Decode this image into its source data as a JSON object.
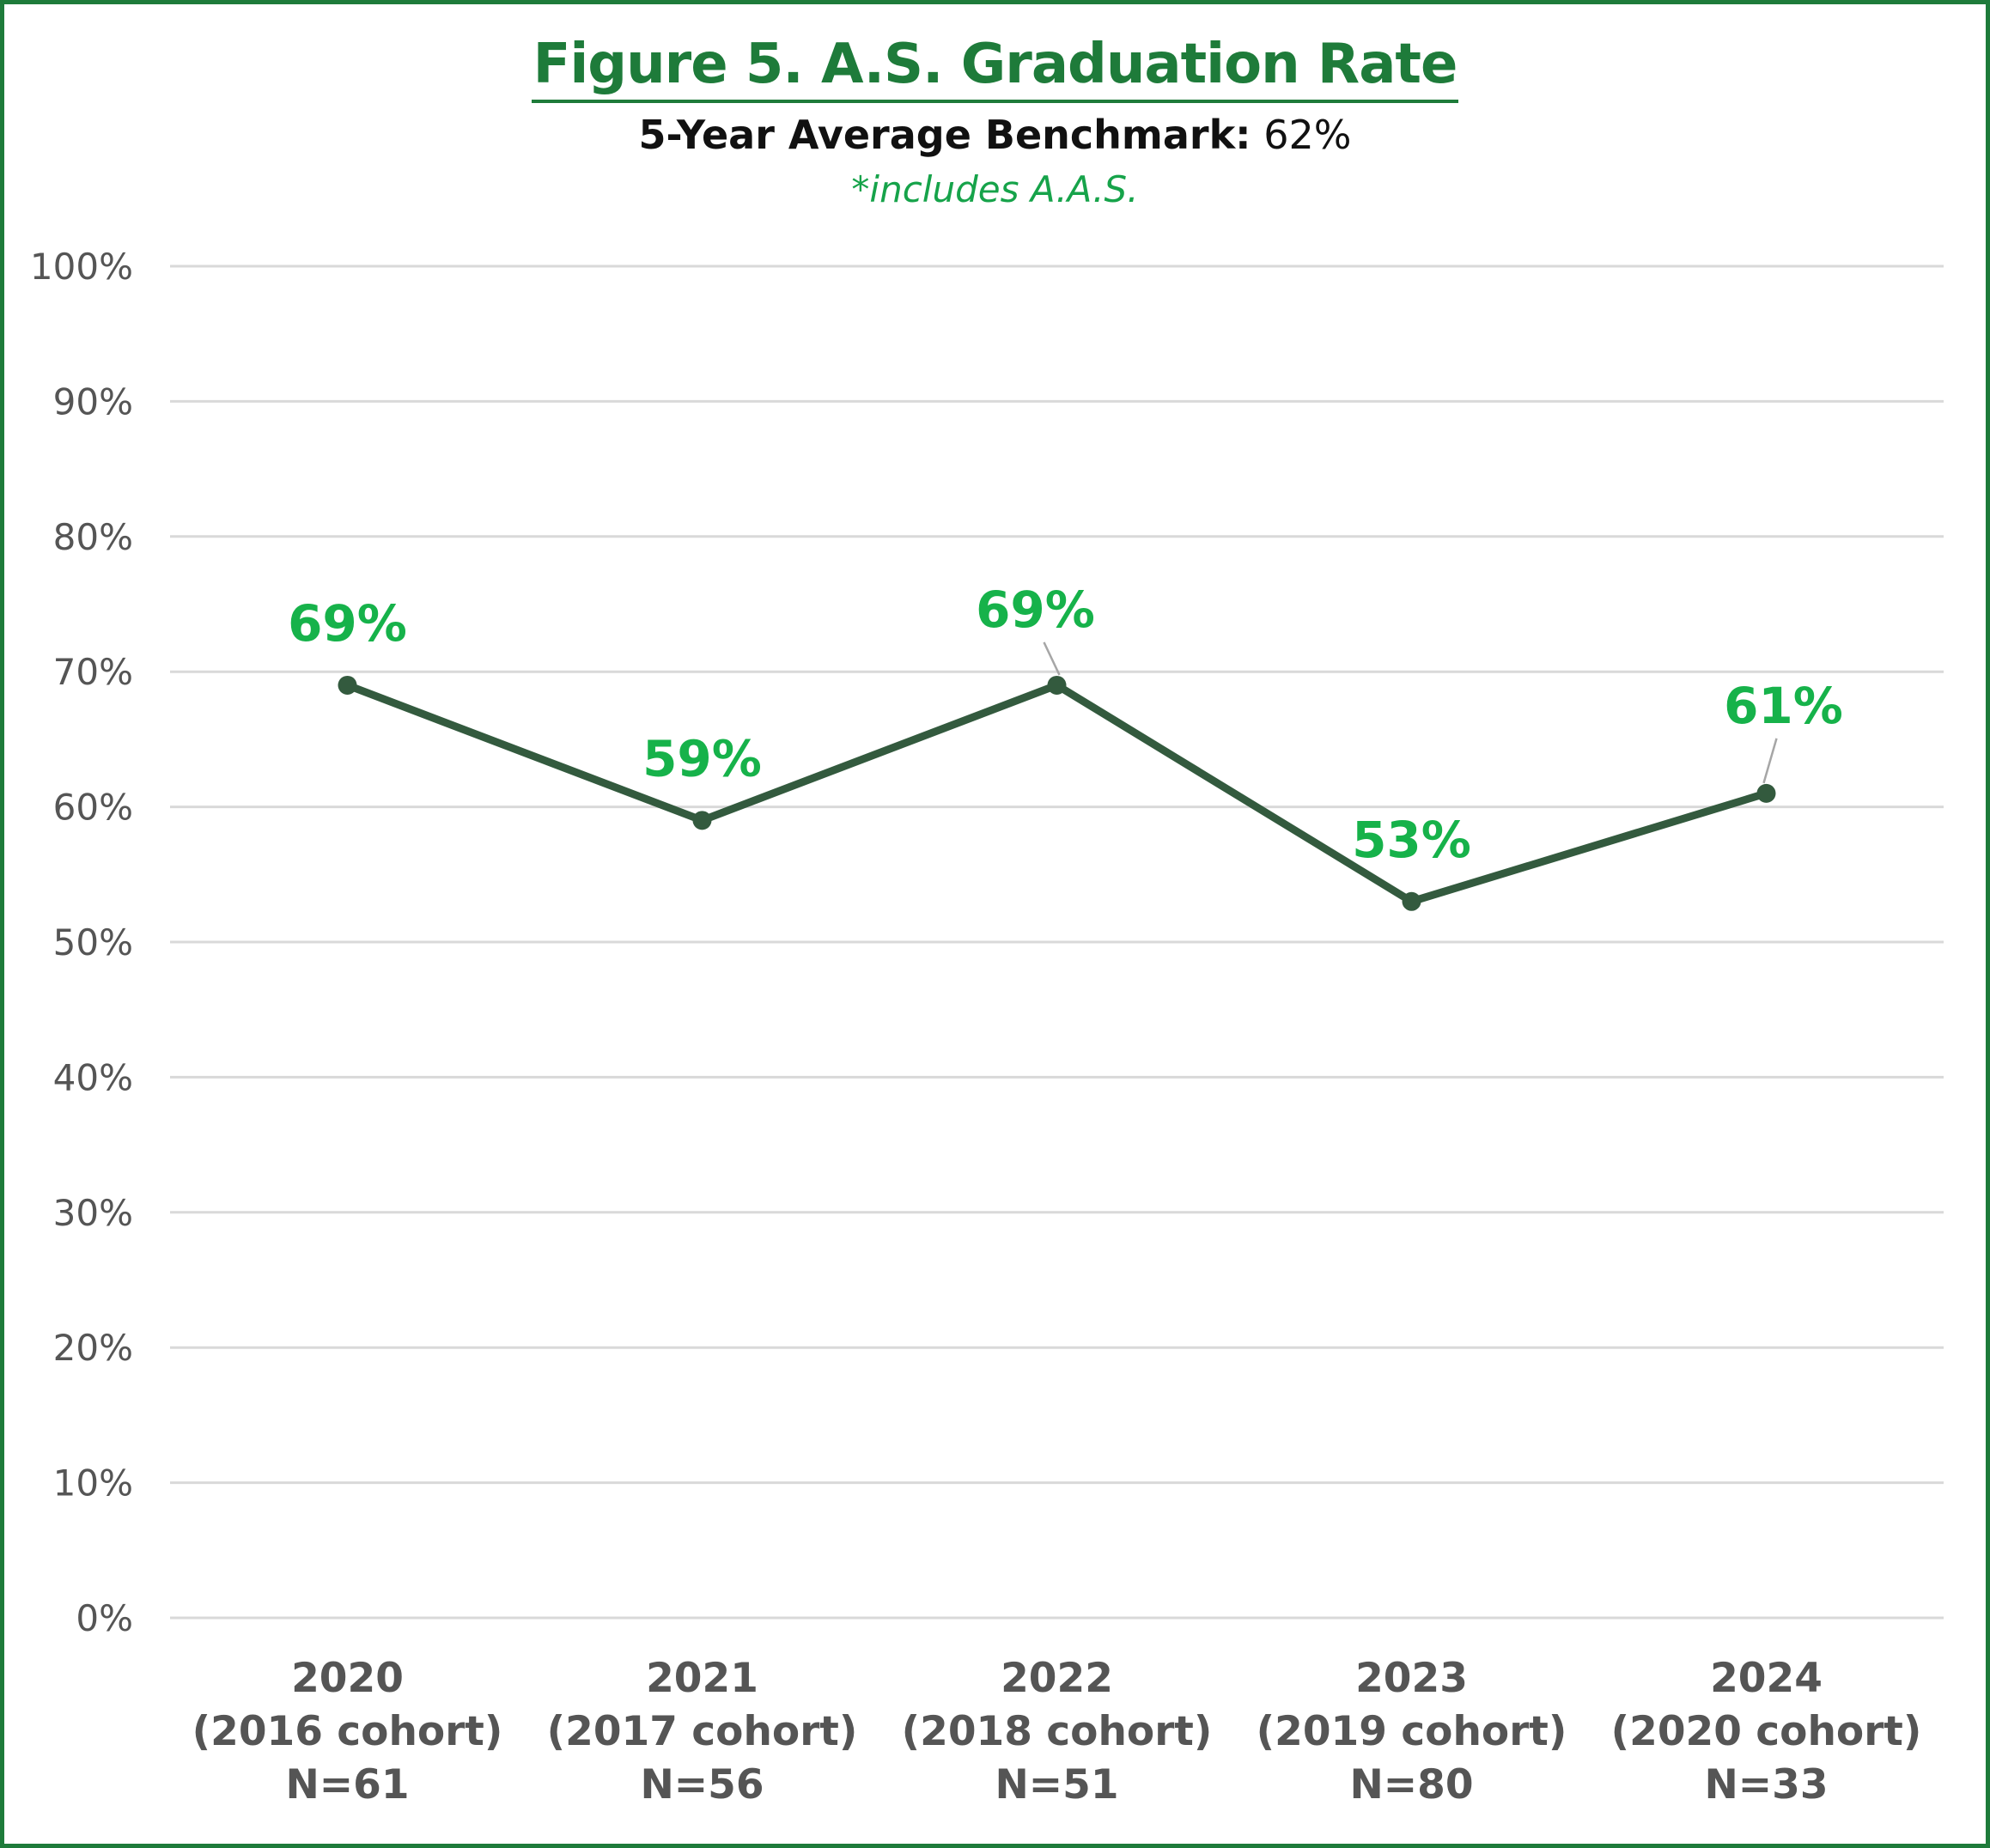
{
  "chart_data": {
    "type": "line",
    "title": "Figure 5. A.S. Graduation Rate",
    "subtitle_label": "5-Year Average Benchmark:",
    "subtitle_value": "62%",
    "note": "*includes A.A.S.",
    "categories": [
      [
        "2020",
        "(2016 cohort)",
        "N=61"
      ],
      [
        "2021",
        "(2017 cohort)",
        "N=56"
      ],
      [
        "2022",
        "(2018 cohort)",
        "N=51"
      ],
      [
        "2023",
        "(2019 cohort)",
        "N=80"
      ],
      [
        "2024",
        "(2020 cohort)",
        "N=33"
      ]
    ],
    "values": [
      69,
      59,
      69,
      53,
      61
    ],
    "data_labels": [
      "69%",
      "59%",
      "69%",
      "53%",
      "61%"
    ],
    "yticks": [
      "0%",
      "10%",
      "20%",
      "30%",
      "40%",
      "50%",
      "60%",
      "70%",
      "80%",
      "90%",
      "100%"
    ],
    "ylim": [
      0,
      100
    ],
    "grid": true,
    "legend": "none",
    "colors": {
      "line": "#335a3e",
      "data_label": "#16b24a",
      "title": "#1e7b3a",
      "grid": "#d9d9d9",
      "axis_text": "#555555",
      "border": "#1e7b3a"
    }
  }
}
